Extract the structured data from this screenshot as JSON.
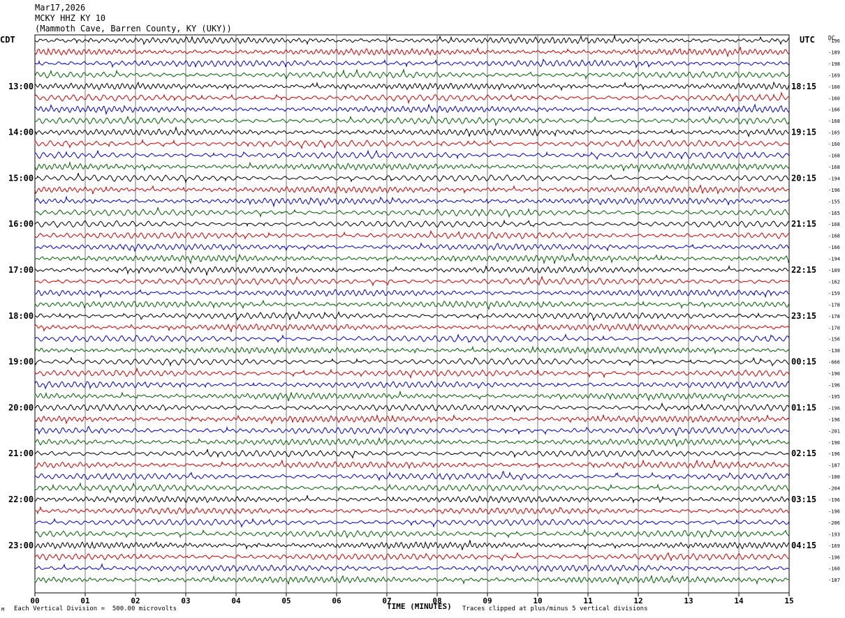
{
  "header": {
    "date": "Mar17,2026",
    "station": "MCKY HHZ KY 10",
    "location": "(Mammoth Cave, Barren County, KY (UKY))"
  },
  "left_zone_label": "CDT",
  "right_zone_label": "UTC",
  "dc_label": "DC",
  "footer": {
    "scale_note": "Each Vertical Division =  500.00 microvolts",
    "clip_note": "Traces clipped at plus/minus 5 vertical divisions",
    "corner_mark": "M"
  },
  "colors": {
    "trace_cycle": [
      "#000000",
      "#d00000",
      "#0000d0",
      "#006000"
    ],
    "grid": "#000000",
    "background": "#ffffff"
  },
  "chart_data": {
    "type": "line",
    "title": "",
    "xlabel": "TIME (MINUTES)",
    "ylabel": "",
    "x_range": [
      0,
      15
    ],
    "x_ticks": [
      "00",
      "01",
      "02",
      "03",
      "04",
      "05",
      "06",
      "07",
      "08",
      "09",
      "10",
      "11",
      "12",
      "13",
      "14",
      "15"
    ],
    "vertical_grid": true,
    "rows_per_hour": 4,
    "row_count": 48,
    "left_hour_labels": [
      "13:00",
      "14:00",
      "15:00",
      "16:00",
      "17:00",
      "18:00",
      "19:00",
      "20:00",
      "21:00",
      "22:00",
      "23:00"
    ],
    "right_hour_labels": [
      "18:15",
      "19:15",
      "20:15",
      "21:15",
      "22:15",
      "23:15",
      "00:15",
      "01:15",
      "02:15",
      "03:15",
      "04:15"
    ],
    "dc_offsets": [
      "-196",
      "-189",
      "-198",
      "-169",
      "-160",
      "-160",
      "-166",
      "-168",
      "-165",
      "-160",
      "-168",
      "-168",
      "-194",
      "-196",
      "-155",
      "-165",
      "-168",
      "-168",
      "-166",
      "-194",
      "-109",
      "-162",
      "-159",
      "-178",
      "-178",
      "-170",
      "-156",
      "-130",
      "-666",
      "-190",
      "-196",
      "-195",
      "-196",
      "-196",
      "-201",
      "-190",
      "-196",
      "-187",
      "-100",
      "-204",
      "-196",
      "-196",
      "-206",
      "-193",
      "-169",
      "-196",
      "-160",
      "-187"
    ]
  }
}
